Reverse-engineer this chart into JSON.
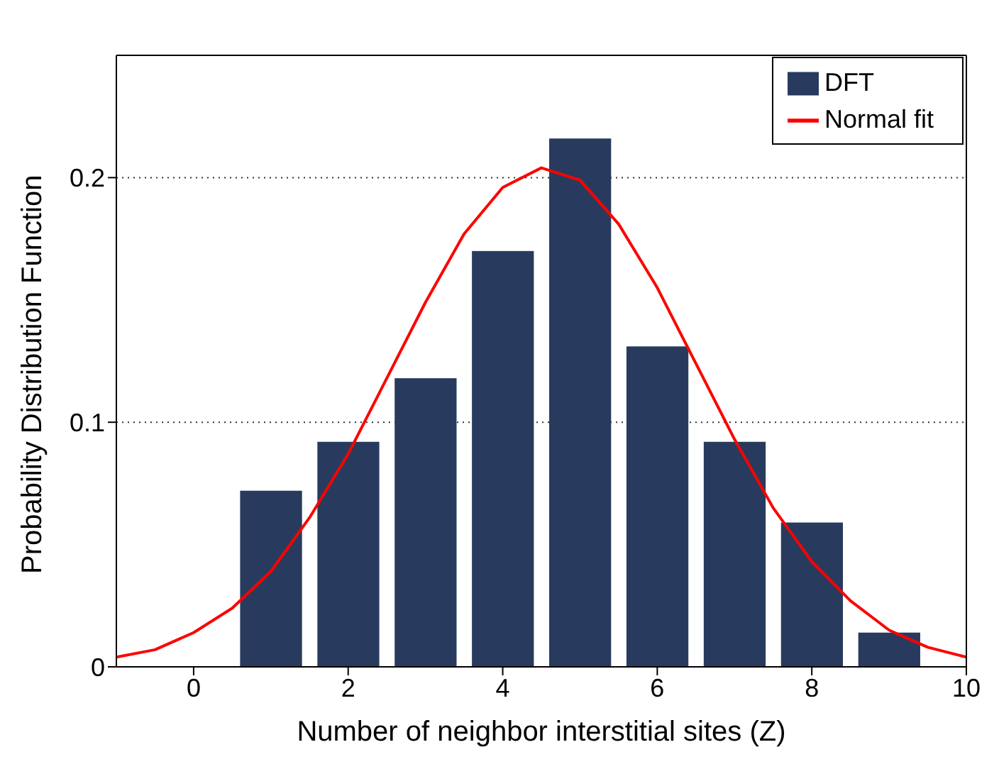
{
  "chart_data": {
    "type": "bar",
    "xlabel": "Number of neighbor interstitial sites (Z)",
    "ylabel": "Probability Distribution Function",
    "x": [
      1,
      2,
      3,
      4,
      5,
      6,
      7,
      8,
      9
    ],
    "series": [
      {
        "name": "DFT",
        "color": "#283b5e",
        "values": [
          0.072,
          0.092,
          0.118,
          0.17,
          0.216,
          0.131,
          0.092,
          0.059,
          0.014
        ]
      },
      {
        "name": "Normal fit",
        "type": "line",
        "color": "#ff0000",
        "x": [
          -1,
          -0.5,
          0,
          0.5,
          1,
          1.5,
          2,
          2.5,
          3,
          3.5,
          4,
          4.5,
          5,
          5.5,
          6,
          6.5,
          7,
          7.5,
          8,
          8.5,
          9,
          9.5,
          10
        ],
        "values": [
          0.004,
          0.007,
          0.014,
          0.024,
          0.039,
          0.061,
          0.087,
          0.118,
          0.149,
          0.177,
          0.196,
          0.204,
          0.199,
          0.181,
          0.155,
          0.124,
          0.093,
          0.065,
          0.043,
          0.027,
          0.015,
          0.008,
          0.004
        ]
      }
    ],
    "xlim": [
      -1,
      10
    ],
    "xticks": [
      0,
      2,
      4,
      6,
      8,
      10
    ],
    "ylim": [
      0,
      0.25
    ],
    "yticks": [
      0,
      0.1,
      0.2
    ],
    "grid": "y",
    "legend": "top right",
    "marker": "none",
    "line_style": "solid"
  }
}
